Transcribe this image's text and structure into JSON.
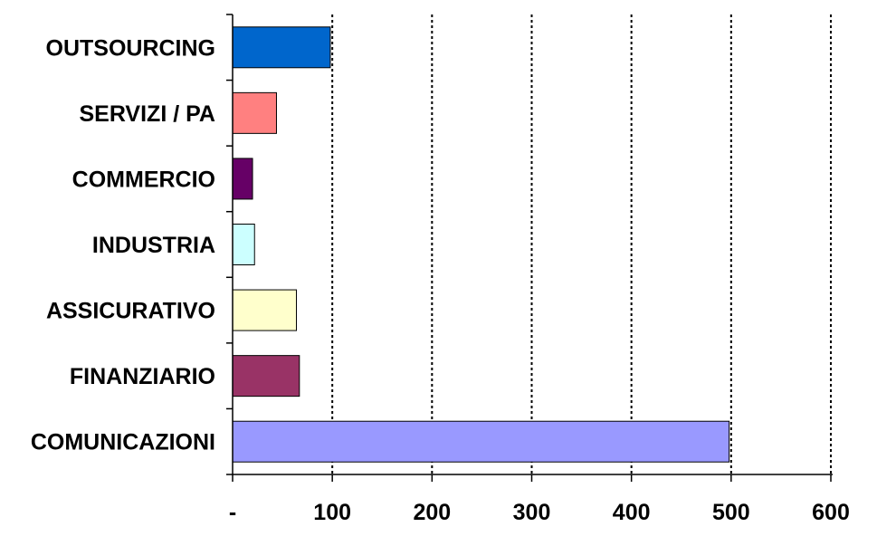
{
  "chart_data": {
    "type": "bar",
    "orientation": "horizontal",
    "title": "",
    "xlabel": "",
    "ylabel": "",
    "categories": [
      "OUTSOURCING",
      "SERVIZI / PA",
      "COMMERCIO",
      "INDUSTRIA",
      "ASSICURATIVO",
      "FINANZIARIO",
      "COMUNICAZIONI"
    ],
    "values": [
      98,
      44,
      20,
      22,
      64,
      67,
      498
    ],
    "colors": [
      "#0066CC",
      "#FF8080",
      "#660066",
      "#CCFFFF",
      "#FFFFCC",
      "#993366",
      "#9999FF"
    ],
    "xlim": [
      0,
      600
    ],
    "ticks": [
      0,
      100,
      200,
      300,
      400,
      500,
      600
    ],
    "tick_labels": [
      "-",
      "100",
      "200",
      "300",
      "400",
      "500",
      "600"
    ],
    "grid": true,
    "grid_style": "dotted",
    "legend": "none"
  }
}
